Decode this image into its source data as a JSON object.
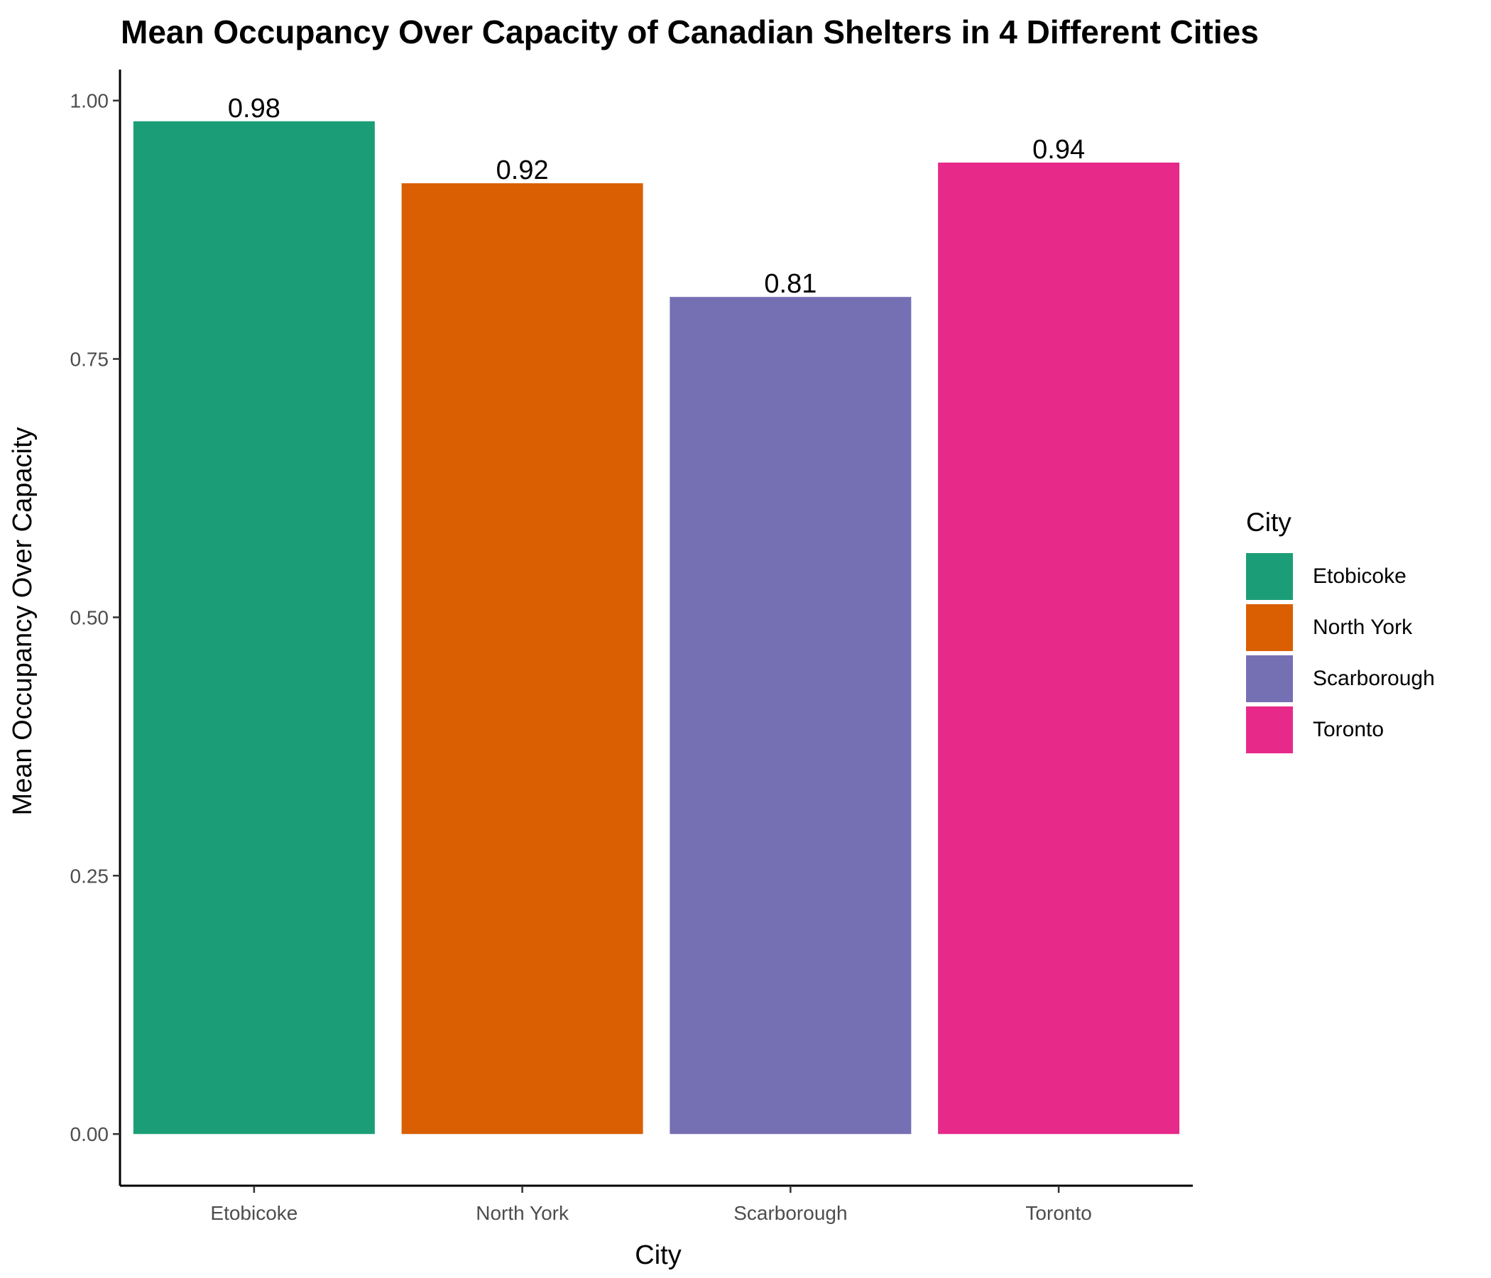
{
  "chart_data": {
    "type": "bar",
    "title": "Mean Occupancy Over Capacity of Canadian Shelters in 4 Different Cities",
    "xlabel": "City",
    "ylabel": "Mean Occupancy Over Capacity",
    "categories": [
      "Etobicoke",
      "North York",
      "Scarborough",
      "Toronto"
    ],
    "values": [
      0.98,
      0.92,
      0.81,
      0.94
    ],
    "value_labels": [
      "0.98",
      "0.92",
      "0.81",
      "0.94"
    ],
    "colors": [
      "#1b9e77",
      "#d95f02",
      "#7570b3",
      "#e7298a"
    ],
    "yticks": [
      "0.00",
      "0.25",
      "0.50",
      "0.75",
      "1.00"
    ],
    "ytick_values": [
      0,
      0.25,
      0.5,
      0.75,
      1.0
    ],
    "ylim": [
      -0.05,
      1.03
    ],
    "grid": false,
    "legend": {
      "title": "City",
      "position": "right",
      "entries": [
        "Etobicoke",
        "North York",
        "Scarborough",
        "Toronto"
      ]
    }
  }
}
